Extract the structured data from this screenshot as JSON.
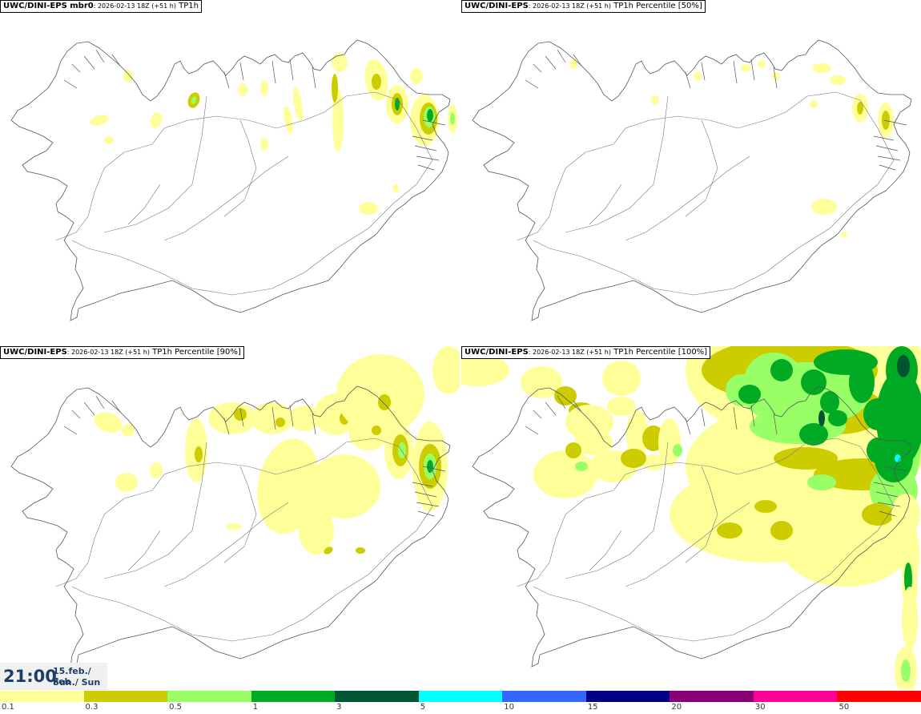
{
  "panels": [
    {
      "model": "UWC/DINI-EPS mbr0",
      "run": ": 2026-02-13 18Z (+51 h)",
      "field": " TP1h",
      "level": "p0"
    },
    {
      "model": "UWC/DINI-EPS",
      "run": ": 2026-02-13 18Z (+51 h)",
      "field": " TP1h Percentile [50%]",
      "level": "p50"
    },
    {
      "model": "UWC/DINI-EPS",
      "run": ": 2026-02-13 18Z (+51 h)",
      "field": " TP1h Percentile [90%]",
      "level": "p90"
    },
    {
      "model": "UWC/DINI-EPS",
      "run": ": 2026-02-13 18Z (+51 h)",
      "field": " TP1h Percentile [100%]",
      "level": "p100"
    }
  ],
  "valid_time": {
    "time": "21:00",
    "date": "15.feb./ Feb",
    "day": "Sun./ Sun"
  },
  "legend": {
    "ticks": [
      "0.1",
      "0.3",
      "0.5",
      "1",
      "3",
      "5",
      "10",
      "15",
      "20",
      "30",
      "50"
    ],
    "colors": [
      "#ffff99",
      "#cccc00",
      "#99ff66",
      "#00aa22",
      "#005533",
      "#00ffff",
      "#3366ff",
      "#000088",
      "#880077",
      "#ff0099",
      "#ff0000"
    ]
  }
}
